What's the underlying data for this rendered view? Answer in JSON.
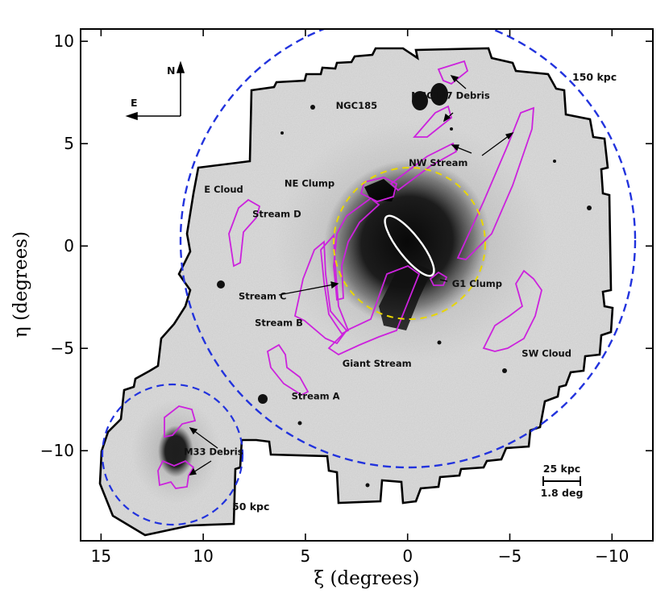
{
  "chart_data": {
    "type": "other",
    "description_kind": "sky_map",
    "xlabel": "ξ (degrees)",
    "ylabel": "η (degrees)",
    "xlim": [
      16,
      -12
    ],
    "ylim": [
      -14.4,
      10.6
    ],
    "x_ticks": [
      15,
      10,
      5,
      0,
      -5,
      -10
    ],
    "x_tick_labels": [
      "15",
      "10",
      "5",
      "0",
      "−5",
      "−10"
    ],
    "y_ticks": [
      10,
      5,
      0,
      -5,
      -10
    ],
    "y_tick_labels": [
      "10",
      "5",
      "0",
      "−5",
      "−10"
    ],
    "grid": false,
    "compass": {
      "north": "N",
      "east": "E"
    },
    "scale_bar": {
      "top": "25 kpc",
      "bottom": "1.8 deg"
    },
    "circles": [
      {
        "label": "150 kpc",
        "center": [
          0,
          0
        ],
        "radius": 11,
        "color": "#2233dd",
        "style": "dashed"
      },
      {
        "label": "50 kpc",
        "center": [
          11.6,
          -10
        ],
        "radius": 3.3,
        "color": "#2233dd",
        "style": "dashed"
      },
      {
        "label": "",
        "center": [
          0,
          0
        ],
        "radius": 3.7,
        "color": "#e8d600",
        "style": "dashed"
      }
    ],
    "annotations": [
      {
        "text": "NGC147 Debris",
        "x": -2.1,
        "y": 7.2
      },
      {
        "text": "NGC185",
        "x": 2.5,
        "y": 6.7
      },
      {
        "text": "NW Stream",
        "x": -1.5,
        "y": 3.9
      },
      {
        "text": "NE Clump",
        "x": 4.8,
        "y": 2.9
      },
      {
        "text": "E Cloud",
        "x": 9.0,
        "y": 2.6
      },
      {
        "text": "Stream D",
        "x": 6.4,
        "y": 1.4
      },
      {
        "text": "Stream C",
        "x": 7.1,
        "y": -2.6
      },
      {
        "text": "G1 Clump",
        "x": -3.4,
        "y": -2.0
      },
      {
        "text": "Stream B",
        "x": 6.3,
        "y": -3.9
      },
      {
        "text": "SW Cloud",
        "x": -6.8,
        "y": -5.4
      },
      {
        "text": "Giant Stream",
        "x": 1.5,
        "y": -5.9
      },
      {
        "text": "Stream A",
        "x": 4.5,
        "y": -7.5
      },
      {
        "text": "M33 Debris",
        "x": 9.5,
        "y": -10.2
      }
    ],
    "colors": {
      "background_map": "#c8c8c8",
      "footprint_outline": "#000000",
      "feature_contours": "#cc22dd",
      "m31_disk_ellipse": "#ffffff"
    }
  }
}
